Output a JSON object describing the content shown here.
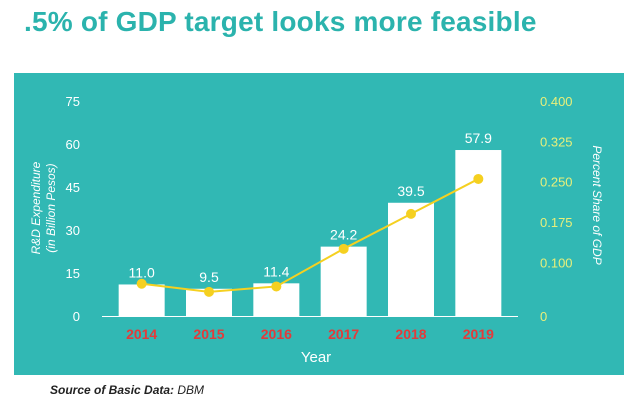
{
  "title": ".5% of GDP target looks more feasible",
  "source": {
    "label": "Source of Basic Data",
    "value": "DBM"
  },
  "colors": {
    "panel": "#31b8b4",
    "bar": "#ffffff",
    "line": "#f5d020",
    "year": "#e23b3b",
    "right_axis": "#e8ef7a",
    "title": "#2bb3ad"
  },
  "chart_data": {
    "type": "bar",
    "xlabel": "Year",
    "ylabel": "R&D Expenditure",
    "ylabel_sub": "(in Billion Pesos)",
    "y2label": "Percent Share of GDP",
    "categories": [
      "2014",
      "2015",
      "2016",
      "2017",
      "2018",
      "2019"
    ],
    "values": [
      11.0,
      9.5,
      11.4,
      24.2,
      39.5,
      57.9
    ],
    "value_labels": [
      "11.0",
      "9.5",
      "11.4",
      "24.2",
      "39.5",
      "57.9"
    ],
    "ylim": [
      0,
      75
    ],
    "yticks": [
      0,
      15,
      30,
      45,
      60,
      75
    ],
    "ytick_labels": [
      "0",
      "15",
      "30",
      "45",
      "60",
      "75"
    ],
    "y2lim": [
      0,
      0.4
    ],
    "y2ticks": [
      0,
      0.1,
      0.175,
      0.25,
      0.325,
      0.4
    ],
    "y2tick_labels": [
      "0",
      "0.100",
      "0.175",
      "0.250",
      "0.325",
      "0.400"
    ],
    "line_series": {
      "values": [
        0.06,
        0.045,
        0.055,
        0.125,
        0.19,
        0.255
      ]
    },
    "grid": false,
    "legend": "none"
  }
}
